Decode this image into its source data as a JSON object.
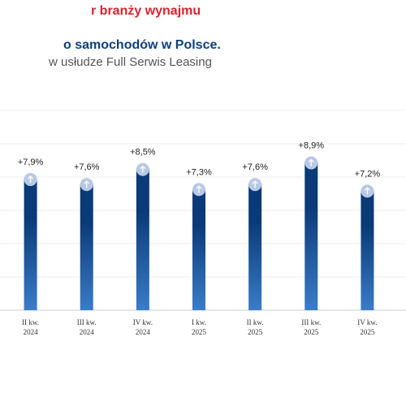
{
  "title_lines": [
    "r branży wynajmu",
    "o samochodów w Polsce.",
    "w usłudze Full Serwis Leasing"
  ],
  "chart_data": {
    "type": "bar",
    "categories": [
      [
        "II kw.",
        "2024"
      ],
      [
        "III kw.",
        "2024"
      ],
      [
        "IV kw.",
        "2024"
      ],
      [
        "I kw.",
        "2025"
      ],
      [
        "II kw.",
        "2025"
      ],
      [
        "III kw.",
        "2025"
      ],
      [
        "IV kw.",
        "2025"
      ]
    ],
    "values": [
      7.9,
      7.6,
      8.5,
      7.3,
      7.6,
      8.9,
      7.2
    ],
    "value_labels": [
      "+7,9%",
      "+7,6%",
      "+8,5%",
      "+7,3%",
      "+7,6%",
      "+8,9%",
      "+7,2%"
    ],
    "color": [
      "#0a3a78",
      "#3a7cc8"
    ],
    "ylim": [
      0,
      12
    ],
    "yticks": [
      0,
      2,
      4,
      6,
      8,
      10,
      12
    ],
    "grid": true
  }
}
